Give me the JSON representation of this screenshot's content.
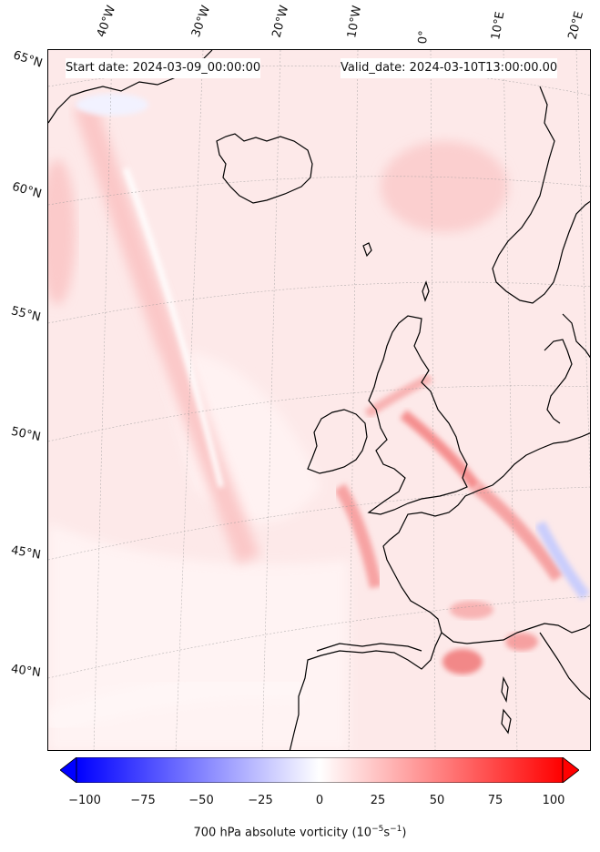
{
  "map": {
    "start_date": "Start date: 2024-03-09_00:00:00",
    "valid_date": "Valid_date: 2024-03-10T13:00:00.00",
    "lon_labels": [
      "40°W",
      "30°W",
      "20°W",
      "10°W",
      "0°",
      "10°E",
      "20°E"
    ],
    "lat_labels": [
      "65°N",
      "60°N",
      "55°N",
      "50°N",
      "45°N",
      "40°N"
    ],
    "colors": {
      "land_outline": "#000000",
      "background_field": "#fde8e8",
      "max_positive": "#ff0000",
      "max_negative": "#0000ff"
    }
  },
  "colorbar": {
    "ticks": [
      "−100",
      "−75",
      "−50",
      "−25",
      "0",
      "25",
      "50",
      "75",
      "100"
    ],
    "label_text": "700 hPa absolute vorticity (10",
    "label_exp1": "−5",
    "label_mid": "s",
    "label_exp2": "−1",
    "label_end": ")",
    "range": [
      -100,
      100
    ],
    "colormap": "bwr"
  }
}
